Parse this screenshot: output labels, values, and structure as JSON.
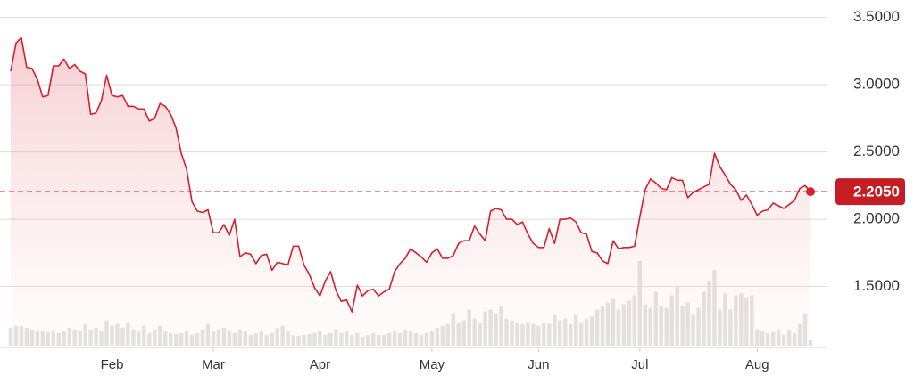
{
  "chart_data": {
    "type": "line",
    "color": "#d4202f",
    "volume_color": "#e2e2e2",
    "values": [
      3.1,
      3.31,
      3.35,
      3.13,
      3.12,
      3.04,
      2.91,
      2.92,
      3.14,
      3.14,
      3.19,
      3.12,
      3.15,
      3.1,
      3.08,
      2.78,
      2.79,
      2.88,
      3.07,
      2.92,
      2.91,
      2.92,
      2.84,
      2.84,
      2.82,
      2.82,
      2.73,
      2.75,
      2.86,
      2.84,
      2.78,
      2.68,
      2.49,
      2.37,
      2.13,
      2.06,
      2.05,
      2.07,
      1.9,
      1.9,
      1.96,
      1.88,
      2.0,
      1.72,
      1.75,
      1.74,
      1.67,
      1.73,
      1.74,
      1.62,
      1.68,
      1.67,
      1.66,
      1.8,
      1.8,
      1.66,
      1.59,
      1.49,
      1.43,
      1.54,
      1.61,
      1.47,
      1.39,
      1.4,
      1.31,
      1.51,
      1.43,
      1.47,
      1.48,
      1.43,
      1.46,
      1.48,
      1.61,
      1.67,
      1.71,
      1.78,
      1.75,
      1.72,
      1.68,
      1.75,
      1.78,
      1.71,
      1.71,
      1.73,
      1.82,
      1.84,
      1.84,
      1.95,
      1.89,
      1.84,
      2.06,
      2.08,
      2.07,
      2.0,
      2.0,
      1.96,
      1.98,
      1.89,
      1.82,
      1.79,
      1.79,
      1.93,
      1.82,
      2.0,
      2.0,
      2.01,
      1.98,
      1.9,
      1.89,
      1.76,
      1.75,
      1.69,
      1.67,
      1.84,
      1.78,
      1.79,
      1.79,
      1.8,
      2.02,
      2.22,
      2.3,
      2.27,
      2.23,
      2.22,
      2.31,
      2.29,
      2.29,
      2.16,
      2.2,
      2.22,
      2.24,
      2.26,
      2.49,
      2.39,
      2.33,
      2.26,
      2.22,
      2.14,
      2.18,
      2.11,
      2.03,
      2.06,
      2.07,
      2.12,
      2.1,
      2.08,
      2.11,
      2.14,
      2.23,
      2.25,
      2.205
    ],
    "volume": [
      20,
      22,
      22,
      20,
      18,
      17,
      16,
      15,
      17,
      14,
      16,
      20,
      18,
      17,
      24,
      18,
      20,
      16,
      28,
      22,
      24,
      20,
      26,
      18,
      16,
      22,
      14,
      18,
      22,
      16,
      14,
      13,
      14,
      16,
      12,
      14,
      18,
      24,
      16,
      18,
      20,
      16,
      14,
      18,
      16,
      12,
      14,
      16,
      12,
      14,
      20,
      22,
      16,
      12,
      11,
      12,
      13,
      14,
      16,
      12,
      14,
      18,
      14,
      16,
      12,
      14,
      10,
      12,
      14,
      12,
      12,
      14,
      16,
      14,
      18,
      16,
      14,
      12,
      14,
      16,
      20,
      22,
      24,
      36,
      26,
      28,
      40,
      30,
      26,
      38,
      40,
      36,
      44,
      30,
      28,
      26,
      24,
      26,
      24,
      22,
      26,
      24,
      34,
      28,
      30,
      24,
      34,
      26,
      30,
      32,
      40,
      44,
      48,
      52,
      40,
      46,
      50,
      56,
      94,
      46,
      42,
      60,
      44,
      42,
      56,
      66,
      44,
      48,
      34,
      42,
      60,
      72,
      84,
      40,
      58,
      40,
      56,
      58,
      54,
      56,
      18,
      16,
      14,
      15,
      18,
      12,
      18,
      14,
      24,
      36,
      6
    ],
    "xlim": [
      0,
      150
    ],
    "xticks": [
      {
        "value": 19,
        "label": "Feb"
      },
      {
        "value": 38,
        "label": "Mar"
      },
      {
        "value": 58,
        "label": "Apr"
      },
      {
        "value": 79,
        "label": "May"
      },
      {
        "value": 99,
        "label": "Jun"
      },
      {
        "value": 118,
        "label": "Jul"
      },
      {
        "value": 140,
        "label": "Aug"
      }
    ],
    "ylim": [
      1.04,
      3.63
    ],
    "yticks": [
      {
        "value": 1.5,
        "label": "1.5000"
      },
      {
        "value": 2.0,
        "label": "2.0000"
      },
      {
        "value": 2.5,
        "label": "2.5000"
      },
      {
        "value": 3.0,
        "label": "3.0000"
      },
      {
        "value": 3.5,
        "label": "3.5000"
      }
    ],
    "grid": true,
    "reference_line": {
      "value": 2.205,
      "label": "2.2050"
    }
  }
}
